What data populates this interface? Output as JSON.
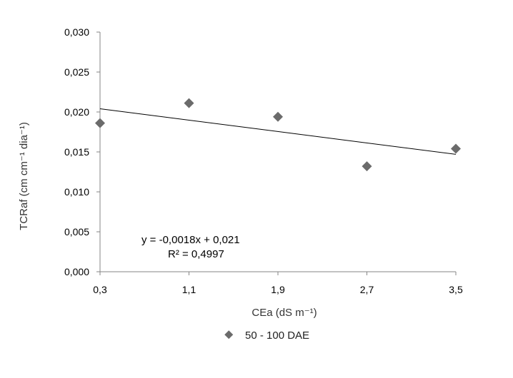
{
  "chart_data": {
    "type": "scatter",
    "x_tick_labels": [
      "0,3",
      "1,1",
      "1,9",
      "2,7",
      "3,5"
    ],
    "y_tick_labels": [
      "0,000",
      "0,005",
      "0,010",
      "0,015",
      "0,020",
      "0,025",
      "0,030"
    ],
    "xlim": [
      0.3,
      3.5
    ],
    "ylim": [
      0.0,
      0.03
    ],
    "xlabel": "CEa (dS m⁻¹)",
    "ylabel": "TCRaf (cm cm⁻¹ dia⁻¹)",
    "grid": false,
    "legend_position": "bottom",
    "series": [
      {
        "name": "50 - 100 DAE",
        "marker": "diamond",
        "color": "#6b6b6b",
        "x": [
          0.3,
          1.1,
          1.9,
          2.7,
          3.5
        ],
        "y": [
          0.0186,
          0.0211,
          0.0194,
          0.0132,
          0.0154
        ]
      }
    ],
    "trendline": {
      "type": "linear",
      "equation": "y = -0,0018x + 0,021",
      "r_squared": "R² = 0,4997",
      "x": [
        0.3,
        3.5
      ],
      "y": [
        0.0204,
        0.0147
      ]
    }
  }
}
